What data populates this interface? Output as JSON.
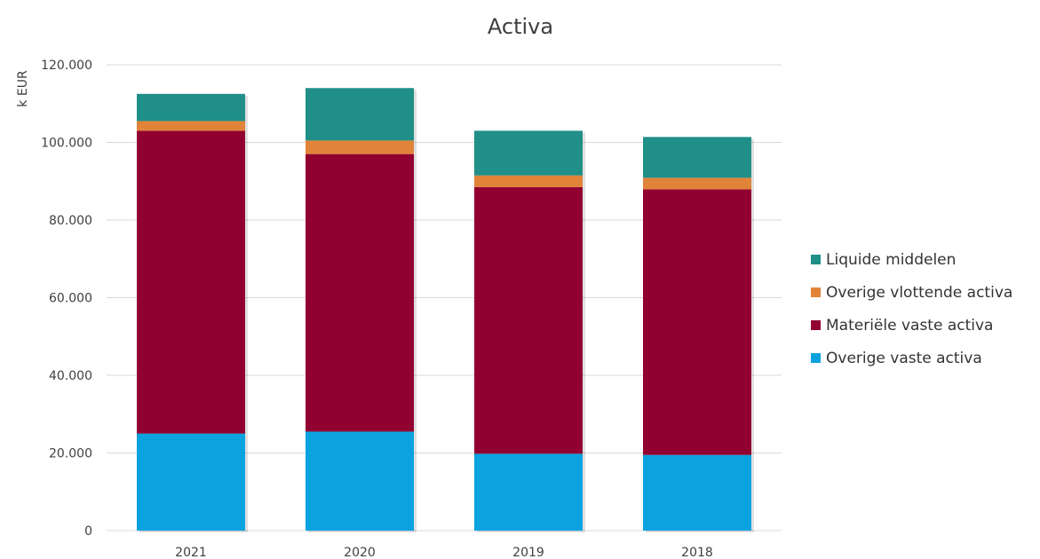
{
  "chart_data": {
    "type": "bar",
    "stacked": true,
    "title": "Activa",
    "xlabel": "",
    "ylabel": "k EUR",
    "ylim": [
      0,
      120000
    ],
    "yticks": [
      0,
      20000,
      40000,
      60000,
      80000,
      100000,
      120000
    ],
    "ytick_labels": [
      "0",
      "20.000",
      "40.000",
      "60.000",
      "80.000",
      "100.000",
      "120.000"
    ],
    "categories": [
      "2021",
      "2020",
      "2019",
      "2018"
    ],
    "grid": true,
    "legend_position": "right",
    "series": [
      {
        "name": "Overige vaste activa",
        "color": "#0aa3e0",
        "values": [
          25000,
          25500,
          19800,
          19500
        ]
      },
      {
        "name": "Materiële vaste activa",
        "color": "#920031",
        "values": [
          78000,
          71500,
          68700,
          68400
        ]
      },
      {
        "name": "Overige vlottende activa",
        "color": "#e1843a",
        "values": [
          2500,
          3500,
          3000,
          3000
        ]
      },
      {
        "name": "Liquide middelen",
        "color": "#1f8f88",
        "values": [
          7000,
          13500,
          11500,
          10500
        ]
      }
    ],
    "legend_order": [
      "Liquide middelen",
      "Overige vlottende activa",
      "Materiële vaste activa",
      "Overige vaste activa"
    ]
  }
}
